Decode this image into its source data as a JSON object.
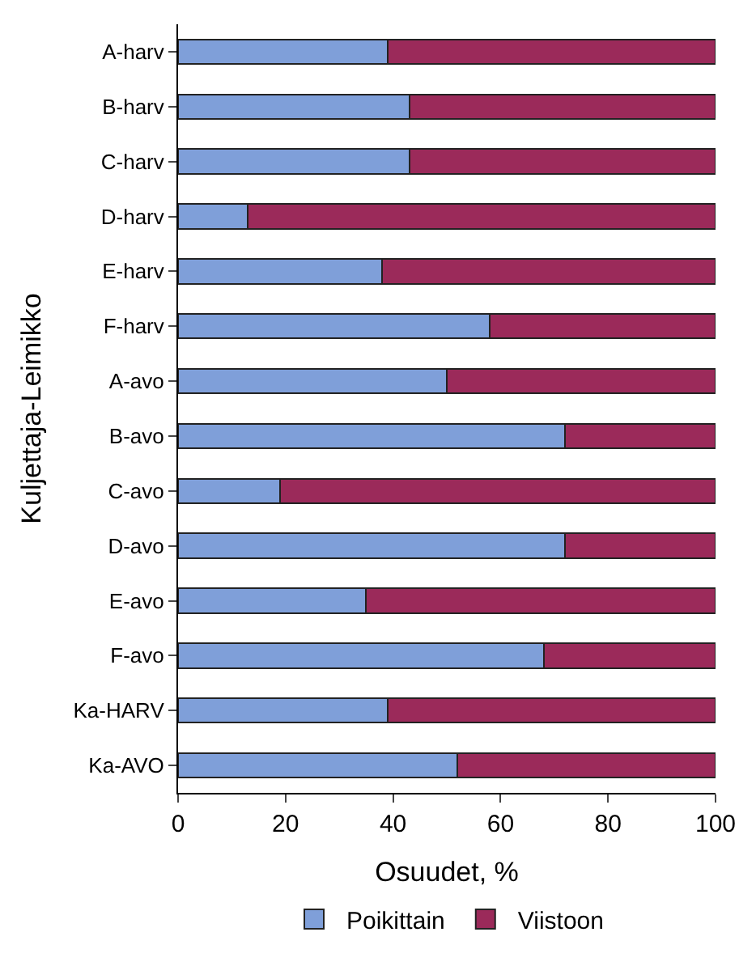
{
  "chart_data": {
    "type": "bar",
    "orientation": "horizontal",
    "stacked": true,
    "categories": [
      "A-harv",
      "B-harv",
      "C-harv",
      "D-harv",
      "E-harv",
      "F-harv",
      "A-avo",
      "B-avo",
      "C-avo",
      "D-avo",
      "E-avo",
      "F-avo",
      "Ka-HARV",
      "Ka-AVO"
    ],
    "series": [
      {
        "name": "Poikittain",
        "color": "#7f9fd9",
        "values": [
          39,
          43,
          43,
          13,
          38,
          58,
          50,
          72,
          19,
          72,
          35,
          68,
          39,
          52
        ]
      },
      {
        "name": "Viistoon",
        "color": "#9b2a5a",
        "values": [
          61,
          57,
          57,
          87,
          62,
          42,
          50,
          28,
          81,
          28,
          65,
          32,
          61,
          48
        ]
      }
    ],
    "xlabel": "Osuudet, %",
    "ylabel": "Kuljettaja-Leimikko",
    "xlim": [
      0,
      100
    ],
    "xticks": [
      0,
      20,
      40,
      60,
      80,
      100
    ],
    "legend": "bottom"
  }
}
